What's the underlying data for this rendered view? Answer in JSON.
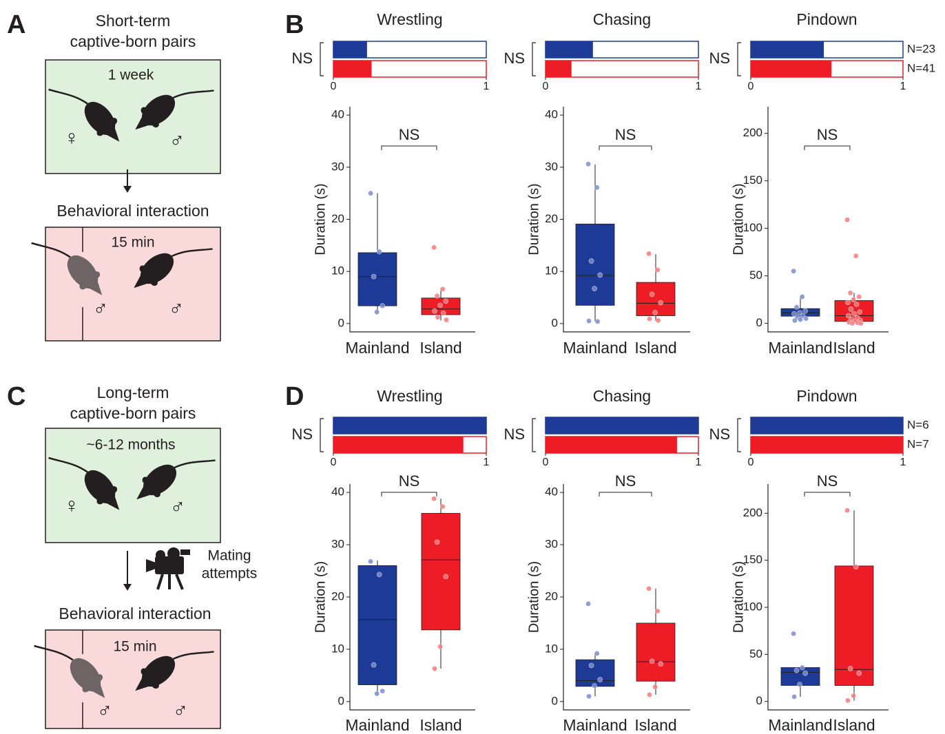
{
  "panel_a": {
    "letter": "A",
    "title_line1": "Short-term",
    "title_line2": "captive-born pairs",
    "housing": "1 week",
    "female_symbol": "♀",
    "male_symbol": "♂",
    "interaction": "Behavioral interaction",
    "duration": "15 min",
    "interaction_symbols": [
      "♂",
      "♂"
    ]
  },
  "panel_b": {
    "letter": "B"
  },
  "panel_c": {
    "letter": "C",
    "title_line1": "Long-term",
    "title_line2": "captive-born pairs",
    "housing": "~6-12 months",
    "female_symbol": "♀",
    "male_symbol": "♂",
    "camera_line1": "Mating",
    "camera_line2": "attempts",
    "interaction": "Behavioral interaction",
    "duration": "15 min",
    "interaction_symbols": [
      "♂",
      "♂"
    ]
  },
  "panel_d": {
    "letter": "D"
  },
  "chart_data": [
    {
      "type": "hbar",
      "title": "Wrestling",
      "annotation": "NS",
      "values": [
        0.22,
        0.25
      ],
      "colors": [
        "#1c3a96",
        "#ee1c25"
      ],
      "xlim": [
        0,
        1
      ],
      "xticks": [
        0,
        1
      ]
    },
    {
      "type": "box",
      "ylabel": "Duration (s)",
      "annotation": "NS",
      "categories": [
        "Mainland",
        "Island"
      ],
      "ylim": [
        -1.6,
        41.6
      ],
      "yticks": [
        0,
        10,
        20,
        30,
        40
      ],
      "boxes": [
        {
          "color": "#1c3a96",
          "point_color": "#7d8ecb",
          "whislo": 2.2,
          "q1": 3.4,
          "med": 9.0,
          "q3": 13.6,
          "whishi": 25,
          "points": [
            25,
            13.8,
            9,
            3.4,
            2.2
          ]
        },
        {
          "color": "#ee1c25",
          "point_color": "#f27b7f",
          "whislo": 0.6,
          "q1": 1.7,
          "med": 2.8,
          "q3": 4.9,
          "whishi": 6.6,
          "points": [
            14.6,
            6.6,
            5.3,
            4.3,
            3.5,
            2.4,
            2.0,
            1.2,
            0.7
          ]
        }
      ]
    },
    {
      "type": "hbar",
      "title": "Chasing",
      "annotation": "NS",
      "values": [
        0.31,
        0.17
      ],
      "colors": [
        "#1c3a96",
        "#ee1c25"
      ],
      "xlim": [
        0,
        1
      ],
      "xticks": [
        0,
        1
      ]
    },
    {
      "type": "box",
      "ylabel": "Duration (s)",
      "annotation": "NS",
      "categories": [
        "Mainland",
        "Island"
      ],
      "ylim": [
        -1.6,
        41.6
      ],
      "yticks": [
        0,
        10,
        20,
        30,
        40
      ],
      "boxes": [
        {
          "color": "#1c3a96",
          "point_color": "#7d8ecb",
          "whislo": 0.4,
          "q1": 3.5,
          "med": 9.2,
          "q3": 19.1,
          "whishi": 30.5,
          "points": [
            30.6,
            26.1,
            12,
            9.3,
            6.7,
            0.5,
            0.4
          ]
        },
        {
          "color": "#ee1c25",
          "point_color": "#f27b7f",
          "whislo": 0.5,
          "q1": 1.5,
          "med": 3.9,
          "q3": 7.9,
          "whishi": 13.3,
          "points": [
            13.4,
            10.3,
            5.6,
            4.0,
            2.1,
            0.9,
            0.6
          ]
        }
      ]
    },
    {
      "type": "hbar",
      "title": "Pindown",
      "annotation": "NS",
      "values": [
        0.48,
        0.53
      ],
      "bar_labels": [
        "N=23",
        "N=41"
      ],
      "colors": [
        "#1c3a96",
        "#ee1c25"
      ],
      "xlim": [
        0,
        1
      ],
      "xticks": [
        0,
        1
      ]
    },
    {
      "type": "box",
      "ylabel": "Duration (s)",
      "annotation": "NS",
      "categories": [
        "Mainland",
        "Island"
      ],
      "ylim": [
        -9,
        228
      ],
      "yticks": [
        0,
        50,
        100,
        150,
        200
      ],
      "boxes": [
        {
          "color": "#1c3a96",
          "point_color": "#7d8ecb",
          "whislo": 3,
          "q1": 7.5,
          "med": 11,
          "q3": 15.5,
          "whishi": 28,
          "points": [
            55,
            28,
            17,
            13,
            11,
            10,
            8,
            6,
            5,
            4,
            3
          ]
        },
        {
          "color": "#ee1c25",
          "point_color": "#f27b7f",
          "whislo": 0,
          "q1": 2,
          "med": 8,
          "q3": 24,
          "whishi": 32,
          "points": [
            109,
            71,
            32,
            28,
            25,
            22,
            20,
            15,
            12,
            10,
            8,
            6,
            4,
            3,
            2,
            1,
            0.5,
            0,
            0
          ]
        }
      ]
    },
    {
      "type": "hbar",
      "title": "Wrestling",
      "annotation": "NS",
      "values": [
        1,
        0.85
      ],
      "colors": [
        "#1c3a96",
        "#ee1c25"
      ],
      "xlim": [
        0,
        1
      ],
      "xticks": [
        0,
        1
      ]
    },
    {
      "type": "box",
      "ylabel": "Duration (s)",
      "annotation": "NS",
      "categories": [
        "Mainland",
        "Island"
      ],
      "ylim": [
        -1.6,
        41.6
      ],
      "yticks": [
        0,
        10,
        20,
        30,
        40
      ],
      "boxes": [
        {
          "color": "#1c3a96",
          "point_color": "#7d8ecb",
          "whislo": 1.5,
          "q1": 3.2,
          "med": 15.7,
          "q3": 26,
          "whishi": 27,
          "points": [
            26.8,
            24.3,
            7,
            2,
            1.5
          ]
        },
        {
          "color": "#ee1c25",
          "point_color": "#f27b7f",
          "whislo": 6.3,
          "q1": 13.7,
          "med": 27.1,
          "q3": 36,
          "whishi": 38.8,
          "points": [
            38.8,
            37.3,
            30.5,
            23.9,
            10.5,
            6.3
          ]
        }
      ]
    },
    {
      "type": "hbar",
      "title": "Chasing",
      "annotation": "NS",
      "values": [
        1,
        0.86
      ],
      "colors": [
        "#1c3a96",
        "#ee1c25"
      ],
      "xlim": [
        0,
        1
      ],
      "xticks": [
        0,
        1
      ]
    },
    {
      "type": "box",
      "ylabel": "Duration (s)",
      "annotation": "NS",
      "categories": [
        "Mainland",
        "Island"
      ],
      "ylim": [
        -1.6,
        41.6
      ],
      "yticks": [
        0,
        10,
        20,
        30,
        40
      ],
      "boxes": [
        {
          "color": "#1c3a96",
          "point_color": "#7d8ecb",
          "whislo": 1,
          "q1": 2.9,
          "med": 4,
          "q3": 8,
          "whishi": 9.2,
          "points": [
            18.7,
            9.2,
            6.9,
            4.2,
            3,
            1
          ]
        },
        {
          "color": "#ee1c25",
          "point_color": "#f27b7f",
          "whislo": 1.3,
          "q1": 3.9,
          "med": 7.6,
          "q3": 15,
          "whishi": 21.6,
          "points": [
            21.6,
            17.3,
            7.7,
            7.2,
            2.8,
            1.3
          ]
        }
      ]
    },
    {
      "type": "hbar",
      "title": "Pindown",
      "annotation": "NS",
      "values": [
        1,
        1
      ],
      "bar_labels": [
        "N=6",
        "N=7"
      ],
      "colors": [
        "#1c3a96",
        "#ee1c25"
      ],
      "xlim": [
        0,
        1
      ],
      "xticks": [
        0,
        1
      ]
    },
    {
      "type": "box",
      "ylabel": "Duration (s)",
      "annotation": "NS",
      "categories": [
        "Mainland",
        "Island"
      ],
      "ylim": [
        -9,
        231
      ],
      "yticks": [
        0,
        50,
        100,
        150,
        200
      ],
      "boxes": [
        {
          "color": "#1c3a96",
          "point_color": "#7d8ecb",
          "whislo": 5,
          "q1": 17,
          "med": 31,
          "q3": 36,
          "whishi": 36,
          "points": [
            72,
            36,
            33,
            30,
            18,
            5
          ]
        },
        {
          "color": "#ee1c25",
          "point_color": "#f27b7f",
          "whislo": 1,
          "q1": 17,
          "med": 34,
          "q3": 144,
          "whishi": 203,
          "points": [
            203,
            143,
            35,
            30,
            6,
            1
          ]
        }
      ]
    }
  ]
}
